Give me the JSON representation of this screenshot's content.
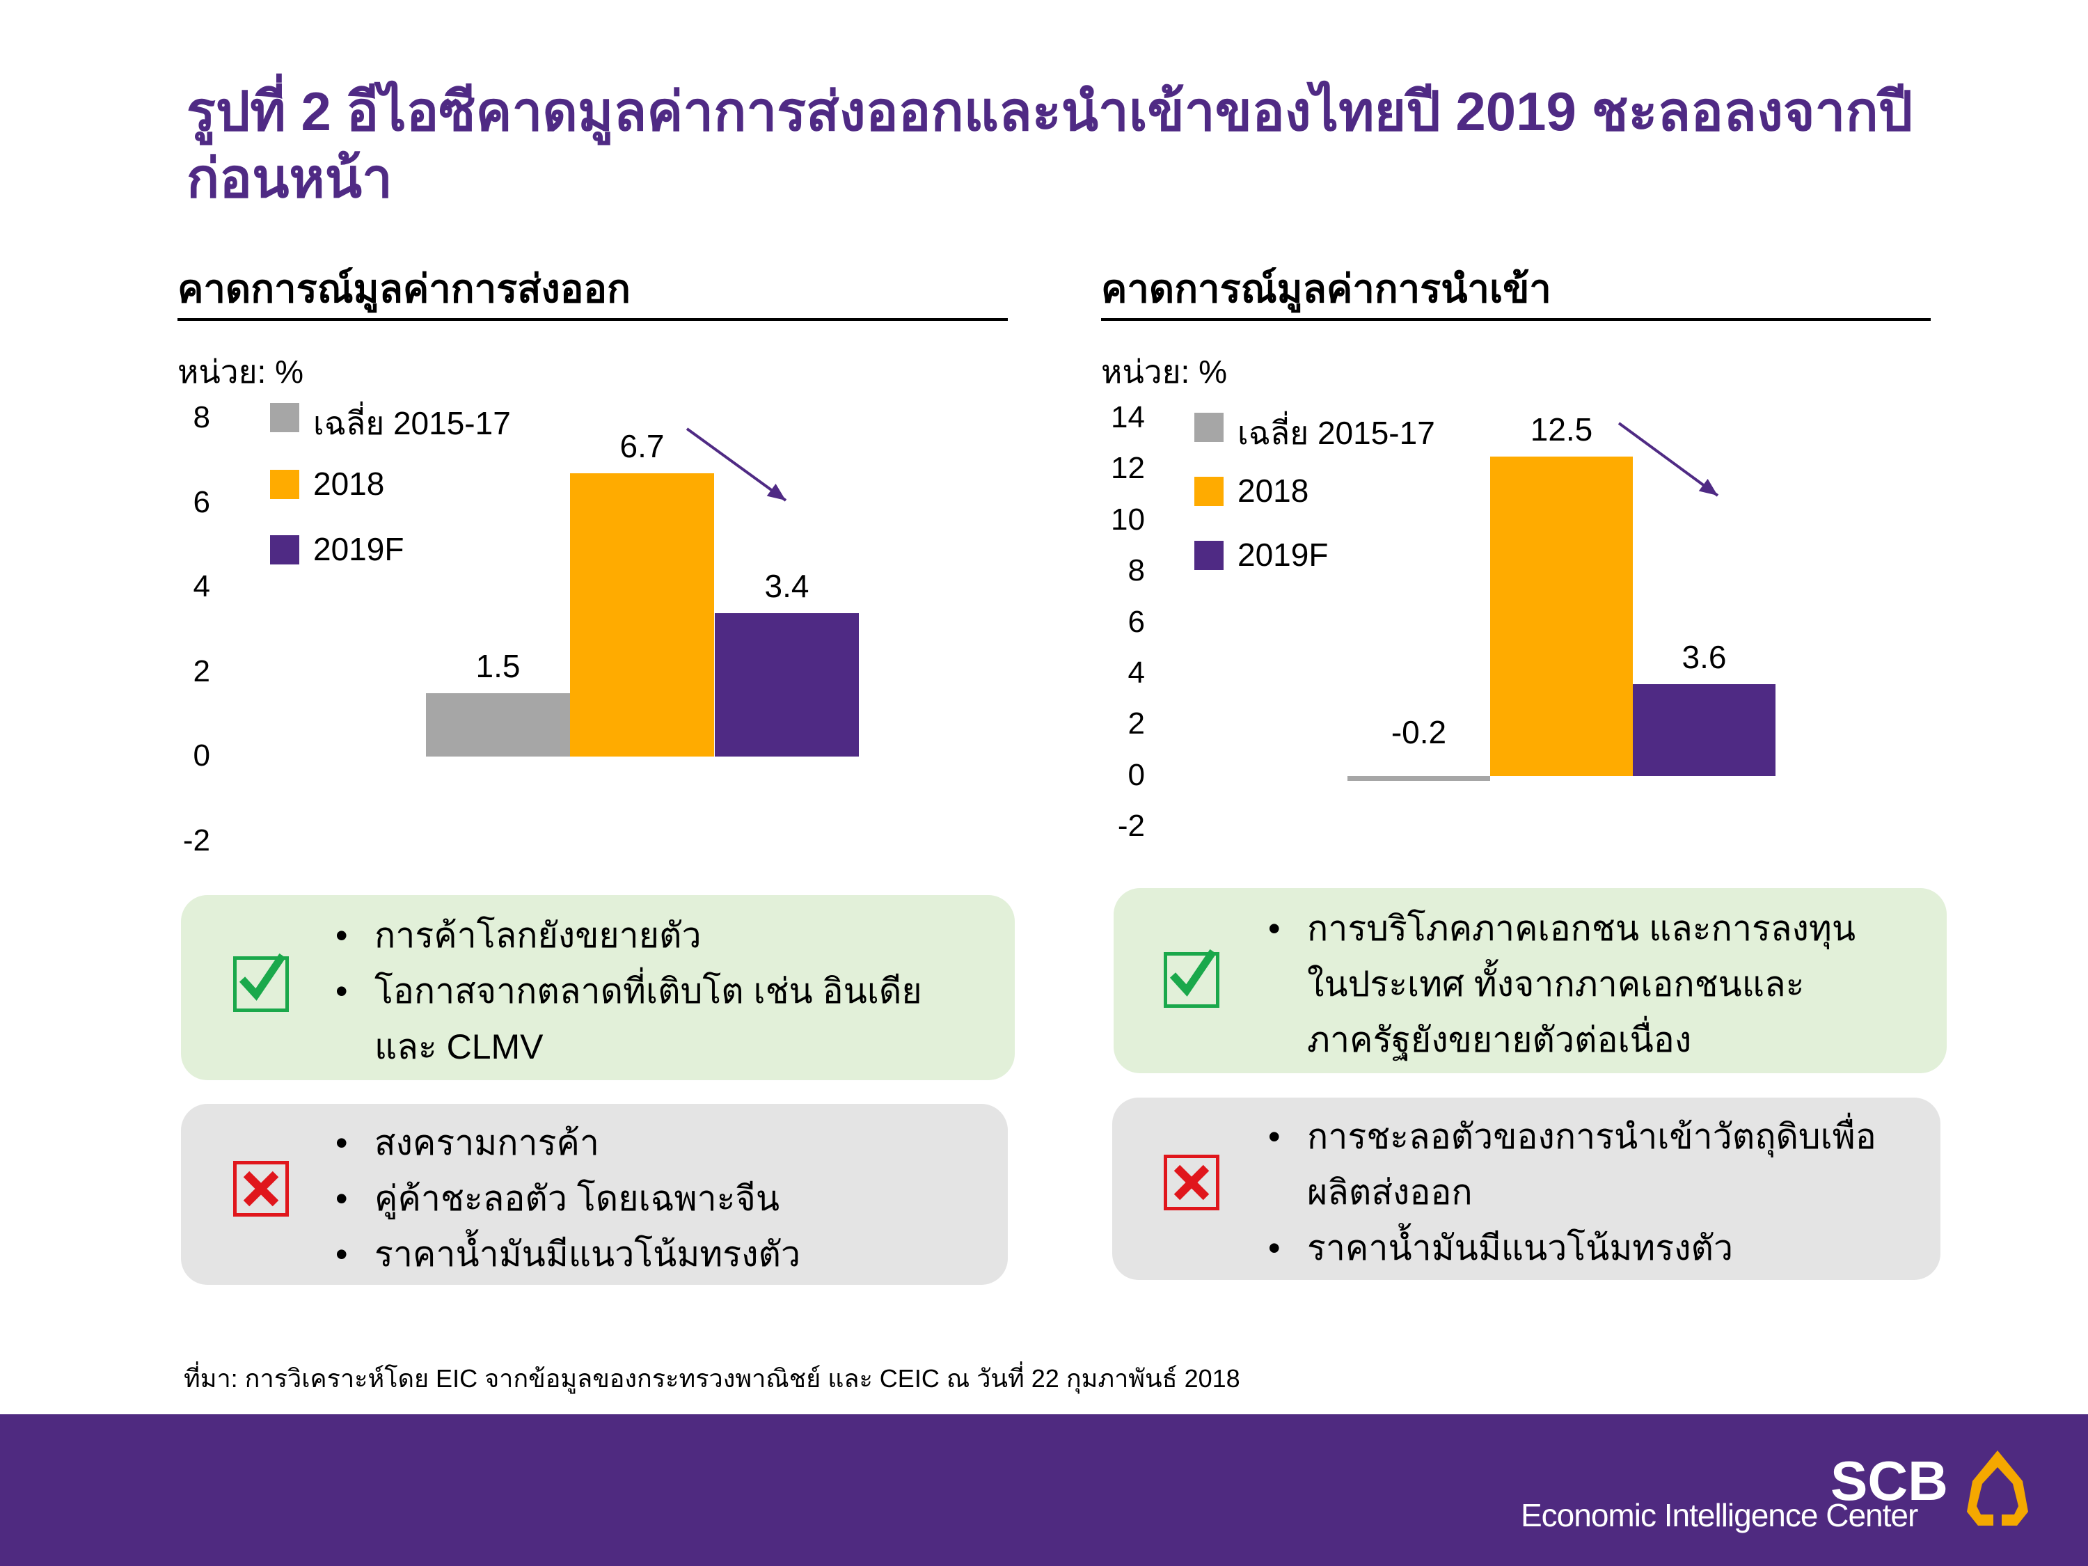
{
  "title": "รูปที่ 2 อีไอซีคาดมูลค่าการส่งออกและนำเข้าของไทยปี 2019 ชะลอลงจากปีก่อนหน้า",
  "colors": {
    "title": "#4f2a84",
    "avg": "#a6a6a6",
    "y2018": "#ffab00",
    "y2019": "#4f2a84",
    "arrow": "#4f2a84",
    "footer": "#4f2a80"
  },
  "chart_data": [
    {
      "type": "bar",
      "title": "คาดการณ์มูลค่าการส่งออก",
      "ylabel": "หน่วย: %",
      "ylim": [
        -2,
        8
      ],
      "yticks": [
        "8",
        "6",
        "4",
        "2",
        "0",
        "-2"
      ],
      "categories": [
        "เฉลี่ย 2015-17",
        "2018",
        "2019F"
      ],
      "values": [
        1.5,
        6.7,
        3.4
      ],
      "labels": [
        "1.5",
        "6.7",
        "3.4"
      ],
      "legend": [
        "เฉลี่ย 2015-17",
        "2018",
        "2019F"
      ],
      "legend_position": "top-left",
      "grid": false
    },
    {
      "type": "bar",
      "title": "คาดการณ์มูลค่าการนำเข้า",
      "ylabel": "หน่วย: %",
      "ylim": [
        -2,
        14
      ],
      "yticks": [
        "14",
        "12",
        "10",
        "8",
        "6",
        "4",
        "2",
        "0",
        "-2"
      ],
      "categories": [
        "เฉลี่ย 2015-17",
        "2018",
        "2019F"
      ],
      "values": [
        -0.2,
        12.5,
        3.6
      ],
      "labels": [
        "-0.2",
        "12.5",
        "3.6"
      ],
      "legend": [
        "เฉลี่ย 2015-17",
        "2018",
        "2019F"
      ],
      "legend_position": "top-left",
      "grid": false
    }
  ],
  "export_pos": [
    "การค้าโลกยังขยายตัว",
    "โอกาสจากตลาดที่เติบโต เช่น อินเดีย และ CLMV"
  ],
  "export_neg": [
    "สงครามการค้า",
    "คู่ค้าชะลอตัว โดยเฉพาะจีน",
    "ราคาน้ำมันมีแนวโน้มทรงตัว"
  ],
  "import_pos": [
    "การบริโภคภาคเอกชน และการลงทุนในประเทศ ทั้งจากภาคเอกชนและภาครัฐยังขยายตัวต่อเนื่อง"
  ],
  "import_neg": [
    "การชะลอตัวของการนำเข้าวัตถุดิบเพื่อผลิตส่งออก",
    "ราคาน้ำมันมีแนวโน้มทรงตัว"
  ],
  "bullet": "•",
  "check_mark": "✓",
  "cross_mark": "✗",
  "source": "ที่มา: การวิเคราะห์โดย EIC จากข้อมูลของกระทรวงพาณิชย์ และ CEIC ณ วันที่ 22 กุมภาพันธ์ 2018",
  "logo": {
    "brand": "SCB",
    "name": "Economic Intelligence Center"
  }
}
